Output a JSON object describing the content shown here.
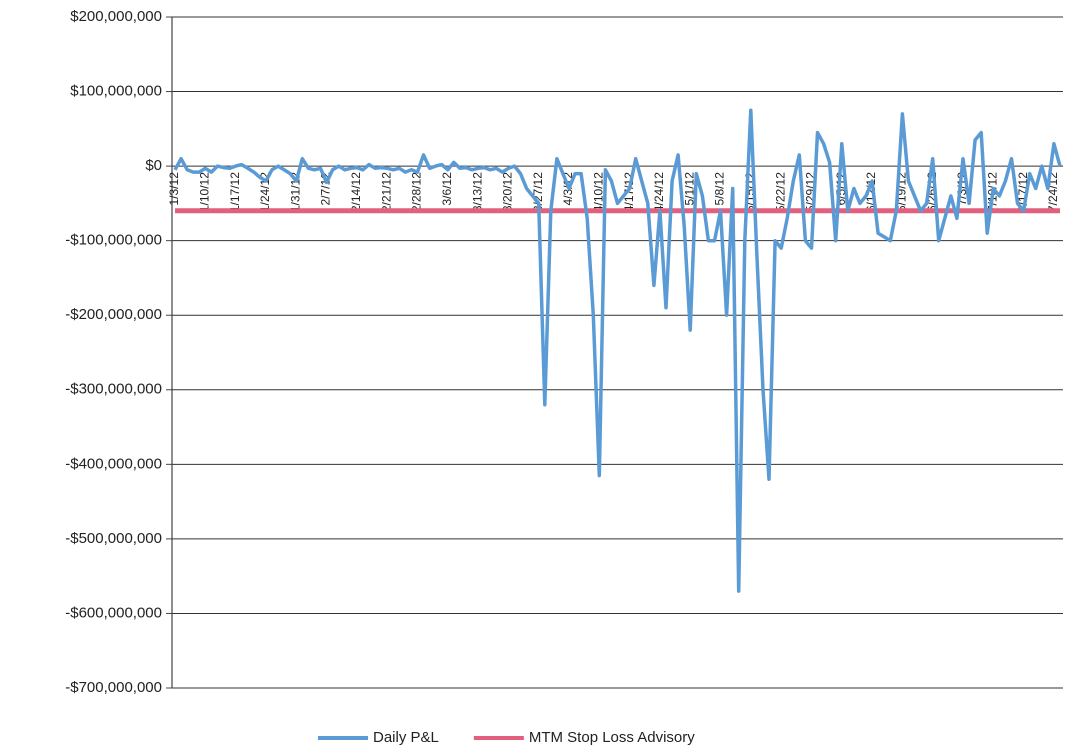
{
  "chart_data": {
    "type": "line",
    "categories": [
      "1/3/12",
      null,
      null,
      null,
      null,
      "1/10/12",
      null,
      null,
      null,
      null,
      "1/17/12",
      null,
      null,
      null,
      null,
      "1/24/12",
      null,
      null,
      null,
      null,
      "1/31/12",
      null,
      null,
      null,
      null,
      "2/7/12",
      null,
      null,
      null,
      null,
      "2/14/12",
      null,
      null,
      null,
      null,
      "2/21/12",
      null,
      null,
      null,
      null,
      "2/28/12",
      null,
      null,
      null,
      null,
      "3/6/12",
      null,
      null,
      null,
      null,
      "3/13/12",
      null,
      null,
      null,
      null,
      "3/20/12",
      null,
      null,
      null,
      null,
      "3/27/12",
      null,
      null,
      null,
      null,
      "4/3/12",
      null,
      null,
      null,
      null,
      "4/10/12",
      null,
      null,
      null,
      null,
      "4/17/12",
      null,
      null,
      null,
      null,
      "4/24/12",
      null,
      null,
      null,
      null,
      "5/1/12",
      null,
      null,
      null,
      null,
      "5/8/12",
      null,
      null,
      null,
      null,
      "5/15/12",
      null,
      null,
      null,
      null,
      "5/22/12",
      null,
      null,
      null,
      null,
      "5/29/12",
      null,
      null,
      null,
      null,
      "6/5/12",
      null,
      null,
      null,
      null,
      "6/12/12",
      null,
      null,
      null,
      null,
      "6/19/12",
      null,
      null,
      null,
      null,
      "6/26/12",
      null,
      null,
      null,
      null,
      "7/3/12",
      null,
      null,
      null,
      null,
      "7/10/12",
      null,
      null,
      null,
      null,
      "7/17/12",
      null,
      null,
      null,
      null,
      "7/24/12",
      null
    ],
    "series": [
      {
        "name": "Daily P&L",
        "color": "#5b9bd5",
        "values": [
          -5000000,
          10000000,
          -5000000,
          -8000000,
          -8000000,
          -3000000,
          -8000000,
          0,
          -2000000,
          -3000000,
          0,
          2000000,
          -3000000,
          -8000000,
          -15000000,
          -20000000,
          -5000000,
          0,
          -5000000,
          -10000000,
          -20000000,
          10000000,
          -3000000,
          -5000000,
          -3000000,
          -22000000,
          -5000000,
          0,
          -5000000,
          -3000000,
          -2000000,
          -5000000,
          2000000,
          -3000000,
          -2000000,
          -3000000,
          -5000000,
          -3000000,
          -8000000,
          -5000000,
          -8000000,
          15000000,
          -3000000,
          0,
          2000000,
          -5000000,
          5000000,
          -3000000,
          -2000000,
          -5000000,
          -3000000,
          -2000000,
          -5000000,
          -3000000,
          -8000000,
          -3000000,
          0,
          -10000000,
          -30000000,
          -40000000,
          -50000000,
          -320000000,
          -60000000,
          10000000,
          -10000000,
          -30000000,
          -10000000,
          -10000000,
          -70000000,
          -200000000,
          -415000000,
          -5000000,
          -20000000,
          -50000000,
          -40000000,
          -30000000,
          10000000,
          -20000000,
          -50000000,
          -160000000,
          -60000000,
          -190000000,
          -20000000,
          15000000,
          -80000000,
          -220000000,
          -10000000,
          -40000000,
          -100000000,
          -100000000,
          -60000000,
          -200000000,
          -30000000,
          -570000000,
          -100000000,
          75000000,
          -120000000,
          -300000000,
          -420000000,
          -100000000,
          -110000000,
          -70000000,
          -20000000,
          15000000,
          -100000000,
          -110000000,
          45000000,
          30000000,
          5000000,
          -100000000,
          30000000,
          -60000000,
          -30000000,
          -50000000,
          -40000000,
          -20000000,
          -90000000,
          -95000000,
          -100000000,
          -60000000,
          70000000,
          -20000000,
          -40000000,
          -60000000,
          -50000000,
          10000000,
          -100000000,
          -70000000,
          -40000000,
          -70000000,
          10000000,
          -50000000,
          35000000,
          45000000,
          -90000000,
          -30000000,
          -40000000,
          -20000000,
          10000000,
          -50000000,
          -60000000,
          -10000000,
          -30000000,
          0,
          -30000000,
          30000000,
          0
        ]
      },
      {
        "name": "MTM Stop Loss Advisory",
        "color": "#e0607e",
        "values": [
          -60000000,
          -60000000,
          -60000000,
          -60000000,
          -60000000,
          -60000000,
          -60000000,
          -60000000,
          -60000000,
          -60000000,
          -60000000,
          -60000000,
          -60000000,
          -60000000,
          -60000000,
          -60000000,
          -60000000,
          -60000000,
          -60000000,
          -60000000,
          -60000000,
          -60000000,
          -60000000,
          -60000000,
          -60000000,
          -60000000,
          -60000000,
          -60000000,
          -60000000,
          -60000000,
          -60000000,
          -60000000,
          -60000000,
          -60000000,
          -60000000,
          -60000000,
          -60000000,
          -60000000,
          -60000000,
          -60000000,
          -60000000,
          -60000000,
          -60000000,
          -60000000,
          -60000000,
          -60000000,
          -60000000,
          -60000000,
          -60000000,
          -60000000,
          -60000000,
          -60000000,
          -60000000,
          -60000000,
          -60000000,
          -60000000,
          -60000000,
          -60000000,
          -60000000,
          -60000000,
          -60000000,
          -60000000,
          -60000000,
          -60000000,
          -60000000,
          -60000000,
          -60000000,
          -60000000,
          -60000000,
          -60000000,
          -60000000,
          -60000000,
          -60000000,
          -60000000,
          -60000000,
          -60000000,
          -60000000,
          -60000000,
          -60000000,
          -60000000,
          -60000000,
          -60000000,
          -60000000,
          -60000000,
          -60000000,
          -60000000,
          -60000000,
          -60000000,
          -60000000,
          -60000000,
          -60000000,
          -60000000,
          -60000000,
          -60000000,
          -60000000,
          -60000000,
          -60000000,
          -60000000,
          -60000000,
          -60000000,
          -60000000,
          -60000000,
          -60000000,
          -60000000,
          -60000000,
          -60000000,
          -60000000,
          -60000000,
          -60000000,
          -60000000,
          -60000000,
          -60000000,
          -60000000,
          -60000000,
          -60000000,
          -60000000,
          -60000000,
          -60000000,
          -60000000,
          -60000000,
          -60000000,
          -60000000,
          -60000000,
          -60000000,
          -60000000,
          -60000000,
          -60000000,
          -60000000,
          -60000000,
          -60000000,
          -60000000,
          -60000000,
          -60000000,
          -60000000,
          -60000000,
          -60000000,
          -60000000,
          -60000000,
          -60000000,
          -60000000,
          -60000000,
          -60000000,
          -60000000,
          -60000000,
          -60000000,
          -60000000,
          -60000000
        ]
      }
    ],
    "ylim": [
      -700000000,
      200000000
    ],
    "yticks": [
      {
        "value": -700000000,
        "label": "-$700,000,000"
      },
      {
        "value": -600000000,
        "label": "-$600,000,000"
      },
      {
        "value": -500000000,
        "label": "-$500,000,000"
      },
      {
        "value": -400000000,
        "label": "-$400,000,000"
      },
      {
        "value": -300000000,
        "label": "-$300,000,000"
      },
      {
        "value": -200000000,
        "label": "-$200,000,000"
      },
      {
        "value": -100000000,
        "label": "-$100,000,000"
      },
      {
        "value": 0,
        "label": "$0"
      },
      {
        "value": 100000000,
        "label": "$100,000,000"
      },
      {
        "value": 200000000,
        "label": "$200,000,000"
      }
    ],
    "grid": true,
    "legend": "bottom"
  }
}
